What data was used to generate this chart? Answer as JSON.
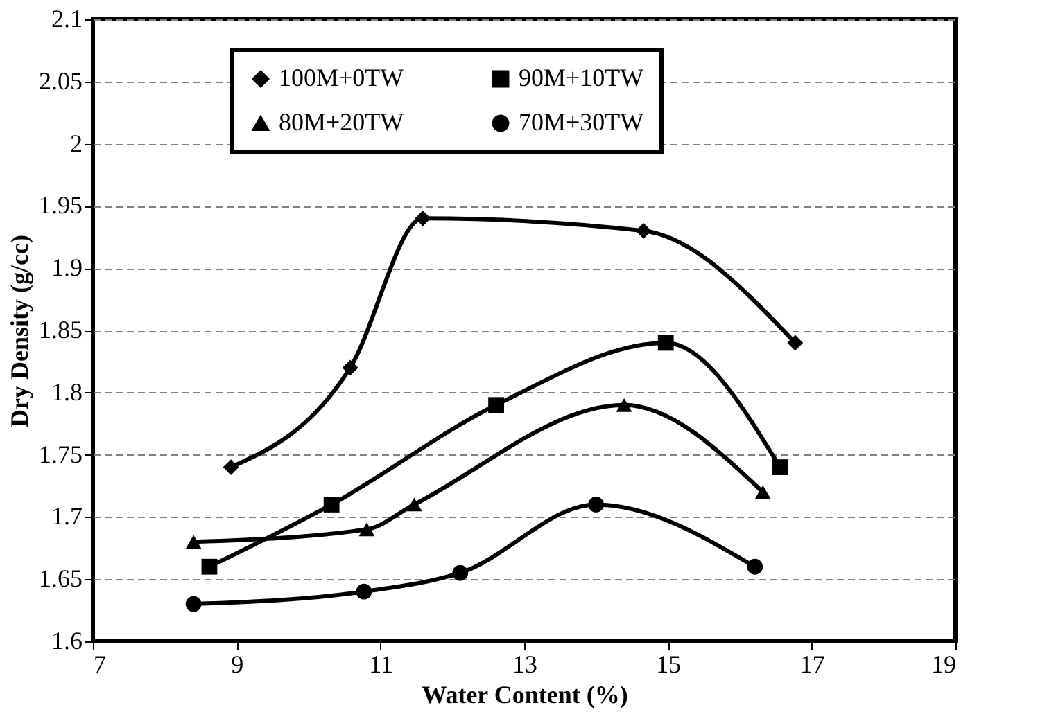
{
  "chart_data": {
    "type": "line",
    "xlabel": "Water Content (%)",
    "ylabel": "Dry Density (g/cc)",
    "xlim": [
      7,
      19
    ],
    "xticks": [
      7,
      9,
      11,
      13,
      15,
      17,
      19
    ],
    "ylim": [
      1.6,
      2.1
    ],
    "yticks": [
      1.6,
      1.65,
      1.7,
      1.75,
      1.8,
      1.85,
      1.9,
      1.95,
      2,
      2.05,
      2.1
    ],
    "grid": "y",
    "legend": "top",
    "line_style": "solid",
    "series": [
      {
        "name": "100M+0TW",
        "color": "#000000",
        "marker": "diamond",
        "x": [
          8.92,
          10.58,
          11.59,
          14.66,
          16.77
        ],
        "values": [
          1.74,
          1.82,
          1.94,
          1.93,
          1.84
        ]
      },
      {
        "name": "90M+10TW",
        "color": "#000000",
        "marker": "square",
        "x": [
          8.62,
          10.32,
          12.61,
          14.97,
          16.56
        ],
        "values": [
          1.66,
          1.71,
          1.79,
          1.84,
          1.74
        ]
      },
      {
        "name": "80M+20TW",
        "color": "#000000",
        "marker": "triangle",
        "x": [
          8.4,
          10.81,
          11.47,
          14.39,
          16.32
        ],
        "values": [
          1.68,
          1.69,
          1.71,
          1.79,
          1.72
        ]
      },
      {
        "name": "70M+30TW",
        "color": "#000000",
        "marker": "circle",
        "x": [
          8.4,
          10.77,
          12.11,
          14.0,
          16.21
        ],
        "values": [
          1.63,
          1.64,
          1.655,
          1.71,
          1.66
        ]
      }
    ]
  }
}
